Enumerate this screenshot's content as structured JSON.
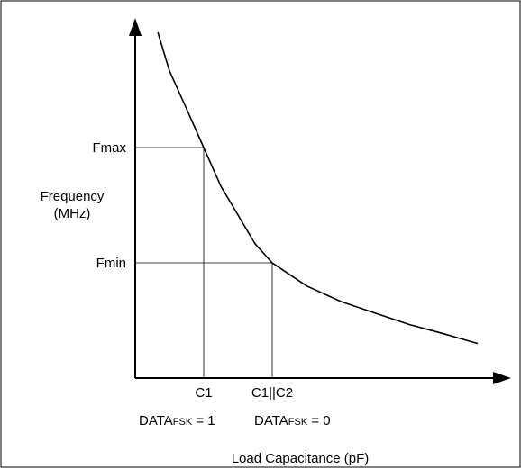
{
  "chart_data": {
    "type": "line",
    "title": "",
    "xlabel": "Load Capacitance (pF)",
    "ylabel": [
      "Frequency",
      "(MHz)"
    ],
    "grid": false,
    "legend": "none",
    "y_ticks": [
      {
        "label": "Fmax",
        "y": 4
      },
      {
        "label": "Fmin",
        "y": 2
      }
    ],
    "x_ticks": [
      {
        "label": "C1",
        "x": 1,
        "state_main": "DATA",
        "state_sub": "FSK",
        "state_value": " = 1"
      },
      {
        "label": "C1||C2",
        "x": 2,
        "state_main": "DATA",
        "state_sub": "FSK",
        "state_value": " = 0"
      }
    ],
    "series": [
      {
        "points": [
          [
            0.33,
            6.0
          ],
          [
            0.5,
            5.33
          ],
          [
            0.75,
            4.67
          ],
          [
            1.0,
            4.0
          ],
          [
            1.25,
            3.33
          ],
          [
            1.5,
            2.83
          ],
          [
            1.75,
            2.33
          ],
          [
            2.0,
            2.0
          ],
          [
            2.25,
            1.8
          ],
          [
            2.5,
            1.6
          ],
          [
            3.0,
            1.33
          ],
          [
            3.5,
            1.13
          ],
          [
            4.0,
            0.93
          ],
          [
            4.5,
            0.77
          ],
          [
            5.0,
            0.6
          ]
        ]
      }
    ],
    "line_color": "#000000",
    "axis_color": "#000000"
  }
}
